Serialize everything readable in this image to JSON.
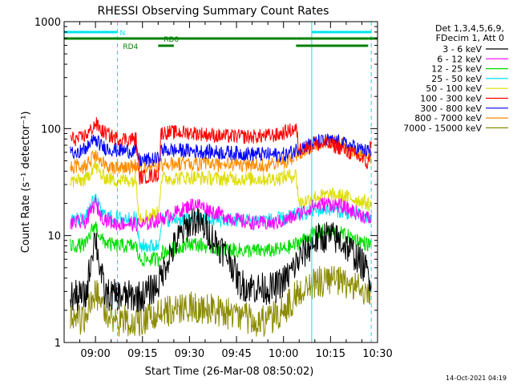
{
  "chart_data": {
    "type": "line",
    "title": "RHESSI Observing Summary Count Rates",
    "xlabel": "Start Time (26-Mar-08 08:50:02)",
    "ylabel": "Count Rate (s⁻¹ detector⁻¹)",
    "yscale": "log",
    "ylim": [
      1,
      1000
    ],
    "xlim": [
      "08:50",
      "10:30"
    ],
    "x_ticks": [
      "09:00",
      "09:15",
      "09:30",
      "09:45",
      "10:00",
      "10:15",
      "10:30"
    ],
    "y_ticks": [
      "1",
      "10",
      "100",
      "1000"
    ],
    "grid": false,
    "legend_header": [
      "Det 1,3,4,5,6,9,",
      "FDecim 1, Att 0"
    ],
    "legend_position": "right",
    "timestamp": "14-Oct-2021 04:19",
    "flags": [
      {
        "name": "N",
        "color": "#00e5ee",
        "segments": [
          [
            "08:50",
            "09:07"
          ],
          [
            "10:09",
            "10:28"
          ]
        ]
      },
      {
        "name": "RD0",
        "color": "#008000",
        "segments": [
          [
            "08:50",
            "10:04"
          ],
          [
            "10:04",
            "10:27"
          ],
          [
            "10:27",
            "10:30"
          ]
        ]
      },
      {
        "name": "RD4",
        "color": "#008000",
        "segments": [
          [
            "09:20",
            "09:25"
          ],
          [
            "10:04",
            "10:27"
          ]
        ]
      }
    ],
    "vertical_markers": [
      {
        "time": "08:50",
        "style": "solid",
        "color": "#00e5ee"
      },
      {
        "time": "09:07",
        "style": "dashed",
        "color": "#00e5ee"
      },
      {
        "time": "10:09",
        "style": "solid",
        "color": "#00e5ee"
      },
      {
        "time": "10:28",
        "style": "dashed",
        "color": "#00e5ee"
      }
    ],
    "data_start": "08:52",
    "data_end": "10:28",
    "noise": 0.14,
    "series": [
      {
        "name": "3 - 6 keV",
        "color": "#000000",
        "points": [
          [
            "08:52",
            2.7
          ],
          [
            "08:57",
            2.7
          ],
          [
            "08:59",
            7.5
          ],
          [
            "09:00",
            10
          ],
          [
            "09:01",
            6
          ],
          [
            "09:03",
            2.8
          ],
          [
            "09:10",
            2.7
          ],
          [
            "09:15",
            2.7
          ],
          [
            "09:20",
            3.5
          ],
          [
            "09:23",
            6
          ],
          [
            "09:27",
            10
          ],
          [
            "09:31",
            14
          ],
          [
            "09:35",
            12
          ],
          [
            "09:38",
            9
          ],
          [
            "09:43",
            6
          ],
          [
            "09:46",
            3.5
          ],
          [
            "09:52",
            3.2
          ],
          [
            "09:57",
            3.2
          ],
          [
            "10:01",
            4
          ],
          [
            "10:05",
            6
          ],
          [
            "10:10",
            9
          ],
          [
            "10:14",
            10
          ],
          [
            "10:18",
            9
          ],
          [
            "10:22",
            7
          ],
          [
            "10:26",
            5
          ],
          [
            "10:28",
            4
          ]
        ]
      },
      {
        "name": "6 - 12 keV",
        "color": "#ff00ff",
        "points": [
          [
            "08:52",
            13
          ],
          [
            "08:57",
            13.5
          ],
          [
            "08:59",
            18
          ],
          [
            "09:00",
            20
          ],
          [
            "09:02",
            15
          ],
          [
            "09:06",
            13
          ],
          [
            "09:10",
            13
          ],
          [
            "09:15",
            12.5
          ],
          [
            "09:20",
            14
          ],
          [
            "09:25",
            16
          ],
          [
            "09:30",
            19
          ],
          [
            "09:32",
            20
          ],
          [
            "09:37",
            17
          ],
          [
            "09:42",
            15
          ],
          [
            "09:47",
            13.5
          ],
          [
            "09:52",
            13
          ],
          [
            "09:57",
            13
          ],
          [
            "10:01",
            14
          ],
          [
            "10:05",
            16
          ],
          [
            "10:10",
            19
          ],
          [
            "10:14",
            20
          ],
          [
            "10:18",
            19
          ],
          [
            "10:22",
            17
          ],
          [
            "10:26",
            15
          ],
          [
            "10:28",
            14
          ]
        ]
      },
      {
        "name": "12 - 25 keV",
        "color": "#00dd00",
        "points": [
          [
            "08:52",
            8
          ],
          [
            "08:57",
            8.2
          ],
          [
            "08:59",
            11.5
          ],
          [
            "09:00",
            12.5
          ],
          [
            "09:02",
            9
          ],
          [
            "09:06",
            8
          ],
          [
            "09:10",
            8
          ],
          [
            "09:13",
            8
          ],
          [
            "09:14",
            6
          ],
          [
            "09:20",
            6
          ],
          [
            "09:21",
            7
          ],
          [
            "09:25",
            7.5
          ],
          [
            "09:30",
            8.5
          ],
          [
            "09:35",
            8
          ],
          [
            "09:40",
            7.5
          ],
          [
            "09:45",
            7.3
          ],
          [
            "09:50",
            7.2
          ],
          [
            "09:55",
            7.2
          ],
          [
            "10:00",
            7.5
          ],
          [
            "10:03",
            8
          ],
          [
            "10:06",
            9
          ],
          [
            "10:10",
            10.5
          ],
          [
            "10:14",
            11
          ],
          [
            "10:18",
            10.5
          ],
          [
            "10:22",
            9.5
          ],
          [
            "10:26",
            8.5
          ],
          [
            "10:28",
            8
          ]
        ]
      },
      {
        "name": "25 - 50 keV",
        "color": "#00e5ee",
        "points": [
          [
            "08:52",
            14
          ],
          [
            "08:57",
            14.5
          ],
          [
            "08:59",
            20
          ],
          [
            "09:00",
            22
          ],
          [
            "09:02",
            16
          ],
          [
            "09:06",
            14.5
          ],
          [
            "09:10",
            14.5
          ],
          [
            "09:13",
            14.5
          ],
          [
            "09:14",
            8
          ],
          [
            "09:20",
            8
          ],
          [
            "09:21",
            14
          ],
          [
            "09:30",
            14.5
          ],
          [
            "09:40",
            14
          ],
          [
            "09:50",
            14
          ],
          [
            "09:57",
            14
          ],
          [
            "10:01",
            14.5
          ],
          [
            "10:05",
            16
          ],
          [
            "10:09",
            17
          ],
          [
            "10:14",
            18
          ],
          [
            "10:18",
            17
          ],
          [
            "10:22",
            16
          ],
          [
            "10:26",
            15
          ],
          [
            "10:28",
            14
          ]
        ]
      },
      {
        "name": "50 - 100 keV",
        "color": "#dddd00",
        "points": [
          [
            "08:52",
            32
          ],
          [
            "08:57",
            33
          ],
          [
            "08:59",
            43
          ],
          [
            "09:00",
            45
          ],
          [
            "09:02",
            36
          ],
          [
            "09:06",
            33
          ],
          [
            "09:10",
            33
          ],
          [
            "09:13",
            33
          ],
          [
            "09:14",
            15
          ],
          [
            "09:20",
            16
          ],
          [
            "09:21",
            34
          ],
          [
            "09:30",
            35
          ],
          [
            "09:40",
            34
          ],
          [
            "09:50",
            34
          ],
          [
            "09:57",
            34
          ],
          [
            "10:04",
            37
          ],
          [
            "10:05",
            20
          ],
          [
            "10:10",
            23
          ],
          [
            "10:15",
            24
          ],
          [
            "10:20",
            23
          ],
          [
            "10:25",
            21
          ],
          [
            "10:27",
            20
          ],
          [
            "10:28",
            18
          ]
        ]
      },
      {
        "name": "100 - 300 keV",
        "color": "#ff0000",
        "points": [
          [
            "08:52",
            80
          ],
          [
            "08:55",
            80
          ],
          [
            "08:58",
            92
          ],
          [
            "09:00",
            112
          ],
          [
            "09:02",
            95
          ],
          [
            "09:06",
            82
          ],
          [
            "09:10",
            80
          ],
          [
            "09:13",
            80
          ],
          [
            "09:14",
            35
          ],
          [
            "09:20",
            37
          ],
          [
            "09:21",
            92
          ],
          [
            "09:30",
            92
          ],
          [
            "09:40",
            85
          ],
          [
            "09:50",
            84
          ],
          [
            "09:58",
            87
          ],
          [
            "10:03",
            98
          ],
          [
            "10:04",
            100
          ],
          [
            "10:05",
            64
          ],
          [
            "10:10",
            70
          ],
          [
            "10:14",
            72
          ],
          [
            "10:18",
            66
          ],
          [
            "10:22",
            58
          ],
          [
            "10:26",
            50
          ],
          [
            "10:27",
            45
          ],
          [
            "10:28",
            82
          ]
        ]
      },
      {
        "name": "300 - 800 keV",
        "color": "#0000ff",
        "points": [
          [
            "08:52",
            62
          ],
          [
            "08:56",
            62
          ],
          [
            "08:59",
            75
          ],
          [
            "09:00",
            80
          ],
          [
            "09:02",
            68
          ],
          [
            "09:06",
            63
          ],
          [
            "09:10",
            62
          ],
          [
            "09:13",
            62
          ],
          [
            "09:14",
            50
          ],
          [
            "09:20",
            52
          ],
          [
            "09:21",
            63
          ],
          [
            "09:30",
            62
          ],
          [
            "09:40",
            60
          ],
          [
            "09:50",
            58
          ],
          [
            "09:57",
            57
          ],
          [
            "10:01",
            57
          ],
          [
            "10:05",
            66
          ],
          [
            "10:10",
            74
          ],
          [
            "10:14",
            77
          ],
          [
            "10:18",
            74
          ],
          [
            "10:22",
            68
          ],
          [
            "10:26",
            62
          ],
          [
            "10:28",
            60
          ]
        ]
      },
      {
        "name": "800 - 7000 keV",
        "color": "#ff8c00",
        "points": [
          [
            "08:52",
            44
          ],
          [
            "08:56",
            44
          ],
          [
            "08:59",
            52
          ],
          [
            "09:00",
            55
          ],
          [
            "09:02",
            47
          ],
          [
            "09:06",
            44
          ],
          [
            "09:10",
            44
          ],
          [
            "09:13",
            44
          ],
          [
            "09:14",
            42
          ],
          [
            "09:20",
            44
          ],
          [
            "09:21",
            46
          ],
          [
            "09:30",
            47
          ],
          [
            "09:40",
            46
          ],
          [
            "09:50",
            46
          ],
          [
            "09:57",
            46
          ],
          [
            "10:01",
            50
          ],
          [
            "10:05",
            60
          ],
          [
            "10:10",
            72
          ],
          [
            "10:14",
            76
          ],
          [
            "10:18",
            72
          ],
          [
            "10:22",
            64
          ],
          [
            "10:26",
            56
          ],
          [
            "10:28",
            50
          ]
        ]
      },
      {
        "name": "7000 - 15000 keV",
        "color": "#8b8b00",
        "points": [
          [
            "08:52",
            1.6
          ],
          [
            "08:57",
            1.6
          ],
          [
            "08:58",
            2.2
          ],
          [
            "09:00",
            3
          ],
          [
            "09:02",
            2.2
          ],
          [
            "09:06",
            1.6
          ],
          [
            "09:10",
            1.6
          ],
          [
            "09:15",
            1.6
          ],
          [
            "09:20",
            1.8
          ],
          [
            "09:25",
            2.1
          ],
          [
            "09:30",
            2.2
          ],
          [
            "09:35",
            2.1
          ],
          [
            "09:40",
            1.9
          ],
          [
            "09:45",
            1.8
          ],
          [
            "09:50",
            1.6
          ],
          [
            "09:55",
            1.6
          ],
          [
            "10:00",
            2
          ],
          [
            "10:05",
            3
          ],
          [
            "10:10",
            3.6
          ],
          [
            "10:15",
            3.8
          ],
          [
            "10:20",
            3.5
          ],
          [
            "10:25",
            3.2
          ],
          [
            "10:28",
            2.8
          ]
        ]
      }
    ]
  }
}
